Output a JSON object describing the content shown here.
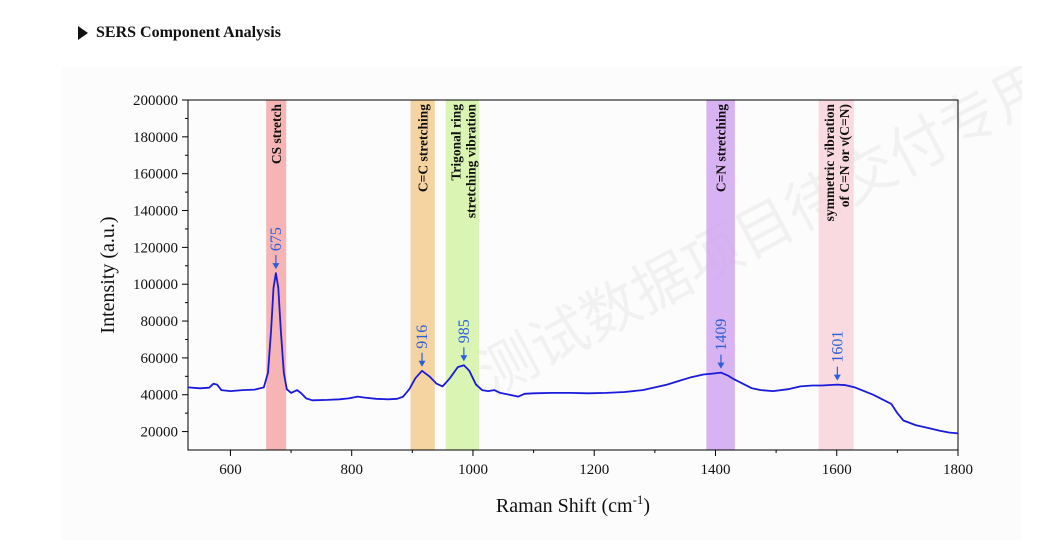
{
  "section": {
    "title": "SERS Component Analysis",
    "marker_icon": "play-triangle-icon"
  },
  "chart_data": {
    "type": "line",
    "xlabel": "Raman Shift (cm",
    "xlabel_sup": "-1",
    "xlabel_suffix": ")",
    "ylabel": "Intensity (a.u.)",
    "xlim": [
      530,
      1800
    ],
    "ylim": [
      10000,
      200000
    ],
    "x_ticks": [
      600,
      800,
      1000,
      1200,
      1400,
      1600,
      1800
    ],
    "y_ticks": [
      20000,
      40000,
      60000,
      80000,
      100000,
      120000,
      140000,
      160000,
      180000,
      200000
    ],
    "line_color": "#1a1adb",
    "series": [
      {
        "points": [
          [
            530,
            44000
          ],
          [
            550,
            43500
          ],
          [
            565,
            43800
          ],
          [
            572,
            46000
          ],
          [
            578,
            45500
          ],
          [
            585,
            42500
          ],
          [
            600,
            42000
          ],
          [
            620,
            42500
          ],
          [
            640,
            42800
          ],
          [
            655,
            44000
          ],
          [
            662,
            52000
          ],
          [
            667,
            75000
          ],
          [
            671,
            98000
          ],
          [
            675,
            106000
          ],
          [
            679,
            98000
          ],
          [
            683,
            75000
          ],
          [
            688,
            52000
          ],
          [
            693,
            43000
          ],
          [
            700,
            41000
          ],
          [
            710,
            42500
          ],
          [
            716,
            41000
          ],
          [
            725,
            38000
          ],
          [
            735,
            37000
          ],
          [
            760,
            37200
          ],
          [
            780,
            37500
          ],
          [
            795,
            38000
          ],
          [
            810,
            39000
          ],
          [
            820,
            38500
          ],
          [
            840,
            37800
          ],
          [
            860,
            37500
          ],
          [
            875,
            37800
          ],
          [
            885,
            39000
          ],
          [
            895,
            43000
          ],
          [
            905,
            49000
          ],
          [
            916,
            53000
          ],
          [
            928,
            50000
          ],
          [
            940,
            46000
          ],
          [
            950,
            44500
          ],
          [
            962,
            49000
          ],
          [
            975,
            55000
          ],
          [
            985,
            56000
          ],
          [
            994,
            53000
          ],
          [
            1005,
            45500
          ],
          [
            1015,
            42500
          ],
          [
            1025,
            42000
          ],
          [
            1035,
            42500
          ],
          [
            1045,
            41000
          ],
          [
            1060,
            40000
          ],
          [
            1075,
            39000
          ],
          [
            1085,
            40500
          ],
          [
            1100,
            40800
          ],
          [
            1130,
            41000
          ],
          [
            1160,
            41000
          ],
          [
            1190,
            40800
          ],
          [
            1220,
            41000
          ],
          [
            1250,
            41500
          ],
          [
            1280,
            42500
          ],
          [
            1300,
            44000
          ],
          [
            1320,
            45500
          ],
          [
            1340,
            47500
          ],
          [
            1360,
            49500
          ],
          [
            1380,
            51000
          ],
          [
            1395,
            51500
          ],
          [
            1409,
            52000
          ],
          [
            1420,
            50500
          ],
          [
            1430,
            48500
          ],
          [
            1445,
            46000
          ],
          [
            1460,
            43500
          ],
          [
            1475,
            42500
          ],
          [
            1495,
            42000
          ],
          [
            1520,
            43000
          ],
          [
            1540,
            44500
          ],
          [
            1560,
            45000
          ],
          [
            1575,
            45000
          ],
          [
            1590,
            45300
          ],
          [
            1601,
            45500
          ],
          [
            1615,
            45200
          ],
          [
            1630,
            44000
          ],
          [
            1645,
            42000
          ],
          [
            1660,
            40000
          ],
          [
            1675,
            37500
          ],
          [
            1690,
            35000
          ],
          [
            1700,
            30000
          ],
          [
            1710,
            26000
          ],
          [
            1730,
            23500
          ],
          [
            1750,
            22000
          ],
          [
            1770,
            20500
          ],
          [
            1785,
            19500
          ],
          [
            1800,
            19000
          ]
        ]
      }
    ],
    "bands": [
      {
        "name": "band-cs-stretch",
        "x_start": 659,
        "x_end": 692,
        "color": "#f4a7a7",
        "label_lines": [
          "CS stretch"
        ],
        "label_y": 185000,
        "label_offset": -6
      },
      {
        "name": "band-cc-stretching",
        "x_start": 897,
        "x_end": 937,
        "color": "#f3cc90",
        "label_lines": [
          "C=C stretching"
        ],
        "label_y": 185000,
        "label_offset": -6
      },
      {
        "name": "band-trigonal-ring",
        "x_start": 955,
        "x_end": 1010,
        "color": "#d3f3a6",
        "label_lines": [
          "Trigonal ring",
          "stretching vibration"
        ],
        "label_y": 185000,
        "label_offset": -12
      },
      {
        "name": "band-cn-stretching",
        "x_start": 1385,
        "x_end": 1432,
        "color": "#d1a6f0",
        "label_lines": [
          "C=N stretching"
        ],
        "label_y": 185000,
        "label_offset": -6
      },
      {
        "name": "band-symmetric-vibration",
        "x_start": 1570,
        "x_end": 1628,
        "color": "#f8d3db",
        "label_lines": [
          "symmetric vibration",
          "of C=N or ν(C=N)"
        ],
        "label_y": 185000,
        "label_offset": -12
      }
    ],
    "peaks": [
      {
        "label": "675",
        "x": 675,
        "y": 106000,
        "label_y": 125000
      },
      {
        "label": "916",
        "x": 916,
        "y": 53000,
        "label_y": 71000
      },
      {
        "label": "985",
        "x": 985,
        "y": 56000,
        "label_y": 75000
      },
      {
        "label": "1409",
        "x": 1409,
        "y": 52000,
        "label_y": 72000
      },
      {
        "label": "1601",
        "x": 1601,
        "y": 45500,
        "label_y": 64000
      }
    ],
    "annotation_color": "#2b5fd9"
  },
  "watermark": {
    "text": "测试数据项目待交付专用切勿外传"
  }
}
